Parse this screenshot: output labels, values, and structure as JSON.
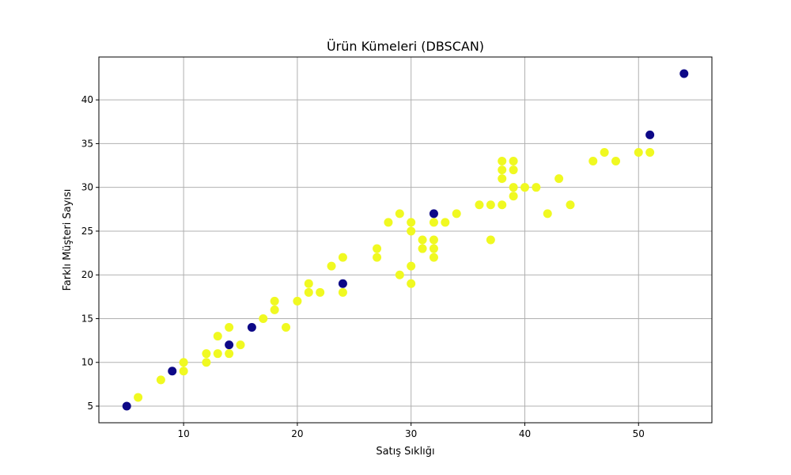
{
  "chart_data": {
    "type": "scatter",
    "title": "Ürün Kümeleri (DBSCAN)",
    "xlabel": "Satış Sıklığı",
    "ylabel": "Farklı Müşteri Sayısı",
    "xlim": [
      2.55,
      56.45
    ],
    "ylim": [
      3.1,
      44.9
    ],
    "xticks": [
      10,
      20,
      30,
      40,
      50
    ],
    "yticks": [
      5,
      10,
      15,
      20,
      25,
      30,
      35,
      40
    ],
    "grid": true,
    "legend": "none",
    "colors": {
      "cluster": "#f0f921",
      "noise": "#0d0887",
      "grid": "#b0b0b0"
    },
    "series": [
      {
        "color": "#f0f921",
        "points": [
          [
            6,
            6
          ],
          [
            8,
            8
          ],
          [
            10,
            9
          ],
          [
            10,
            10
          ],
          [
            12,
            10
          ],
          [
            12,
            11
          ],
          [
            13,
            11
          ],
          [
            13,
            13
          ],
          [
            14,
            11
          ],
          [
            14,
            14
          ],
          [
            15,
            12
          ],
          [
            17,
            15
          ],
          [
            18,
            16
          ],
          [
            18,
            17
          ],
          [
            19,
            14
          ],
          [
            20,
            17
          ],
          [
            21,
            18
          ],
          [
            21,
            19
          ],
          [
            22,
            18
          ],
          [
            23,
            21
          ],
          [
            24,
            18
          ],
          [
            24,
            22
          ],
          [
            27,
            22
          ],
          [
            27,
            23
          ],
          [
            28,
            26
          ],
          [
            29,
            20
          ],
          [
            29,
            27
          ],
          [
            30,
            19
          ],
          [
            30,
            21
          ],
          [
            30,
            25
          ],
          [
            30,
            26
          ],
          [
            31,
            23
          ],
          [
            31,
            24
          ],
          [
            32,
            22
          ],
          [
            32,
            23
          ],
          [
            32,
            24
          ],
          [
            32,
            26
          ],
          [
            33,
            26
          ],
          [
            34,
            27
          ],
          [
            36,
            28
          ],
          [
            37,
            24
          ],
          [
            37,
            28
          ],
          [
            38,
            28
          ],
          [
            38,
            31
          ],
          [
            38,
            32
          ],
          [
            38,
            33
          ],
          [
            39,
            29
          ],
          [
            39,
            30
          ],
          [
            39,
            32
          ],
          [
            39,
            33
          ],
          [
            40,
            30
          ],
          [
            41,
            30
          ],
          [
            42,
            27
          ],
          [
            43,
            31
          ],
          [
            44,
            28
          ],
          [
            46,
            33
          ],
          [
            47,
            34
          ],
          [
            48,
            33
          ],
          [
            50,
            34
          ],
          [
            51,
            34
          ]
        ]
      },
      {
        "color": "#0d0887",
        "points": [
          [
            5,
            5
          ],
          [
            9,
            9
          ],
          [
            14,
            12
          ],
          [
            16,
            14
          ],
          [
            24,
            19
          ],
          [
            32,
            27
          ],
          [
            51,
            36
          ],
          [
            54,
            43
          ]
        ]
      }
    ]
  }
}
